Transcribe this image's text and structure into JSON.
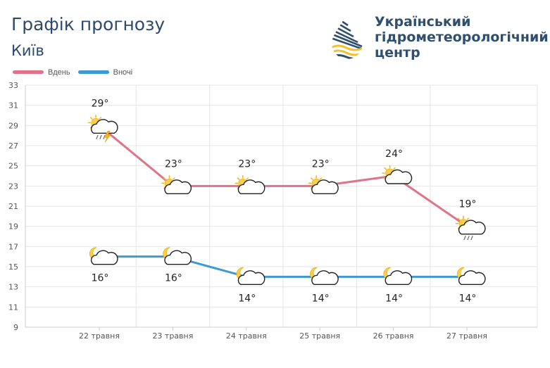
{
  "header": {
    "title": "Графік прогнозу",
    "city": "Київ"
  },
  "organization": {
    "name_line1": "Український",
    "name_line2": "гідрометеорологічний",
    "name_line3": "центр",
    "logo_icon": "drop-waves-logo-icon",
    "colors": {
      "dark": "#2f4f6e",
      "accent": "#f2c12e"
    }
  },
  "chart_data": {
    "type": "line",
    "title": "Графік прогнозу",
    "categories": [
      "22 травня",
      "23 травня",
      "24 травня",
      "25 травня",
      "26 травня",
      "27 травня"
    ],
    "ylim": [
      9,
      33
    ],
    "yticks": [
      9,
      11,
      13,
      15,
      17,
      19,
      21,
      23,
      25,
      27,
      29,
      31,
      33
    ],
    "grid": true,
    "legend_position": "top-left",
    "series": [
      {
        "name": "Вдень",
        "color": "#e0728a",
        "values": [
          29,
          23,
          23,
          23,
          24,
          19
        ],
        "labels": [
          "29°",
          "23°",
          "23°",
          "23°",
          "24°",
          "19°"
        ],
        "icons": [
          "sun-cloud-thunder-rain-icon",
          "sun-cloud-icon",
          "sun-cloud-icon",
          "sun-cloud-icon",
          "sun-cloud-icon",
          "sun-cloud-rain-icon"
        ]
      },
      {
        "name": "Вночі",
        "color": "#3d9ad1",
        "values": [
          16,
          16,
          14,
          14,
          14,
          14
        ],
        "labels": [
          "16°",
          "16°",
          "14°",
          "14°",
          "14°",
          "14°"
        ],
        "icons": [
          "moon-cloud-icon",
          "moon-cloud-icon",
          "moon-cloud-icon",
          "moon-cloud-icon",
          "moon-cloud-icon",
          "moon-cloud-icon"
        ]
      }
    ]
  }
}
